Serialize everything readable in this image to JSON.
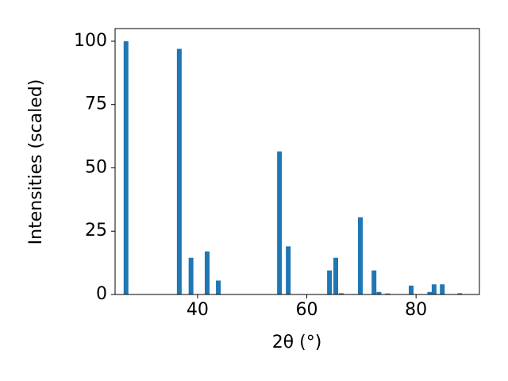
{
  "chart_data": {
    "type": "bar",
    "x_label": "2θ (°)",
    "y_label": "Intensities (scaled)",
    "x": [
      26.9,
      36.65,
      38.8,
      41.75,
      43.8,
      55.0,
      56.6,
      64.15,
      65.3,
      66.3,
      69.8,
      72.3,
      73.2,
      74.8,
      79.1,
      82.5,
      83.3,
      84.8,
      88.0
    ],
    "values": [
      100,
      97,
      14.5,
      17,
      5.5,
      56.5,
      19,
      9.5,
      14.5,
      0.5,
      30.5,
      9.5,
      1,
      0.4,
      3.5,
      1,
      4,
      4,
      0.5
    ],
    "color": "#1f77b4",
    "xlim": [
      24.9,
      91.6
    ],
    "xticks": [
      40,
      60,
      80
    ],
    "ylim": [
      0,
      105
    ],
    "yticks": [
      0,
      25,
      50,
      75,
      100
    ]
  }
}
